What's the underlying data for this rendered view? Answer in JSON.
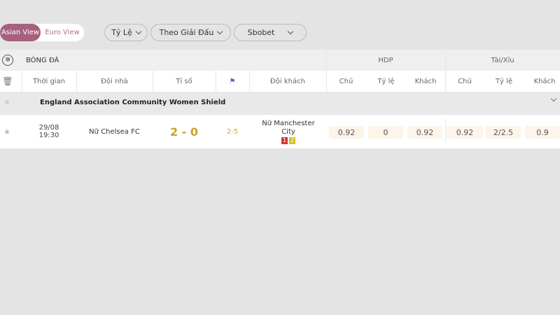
{
  "view_toggle": {
    "asian": "Asian View",
    "euro": "Euro View"
  },
  "filters": [
    {
      "label": "Tỷ Lệ"
    },
    {
      "label": "Theo Giải Đấu"
    },
    {
      "label": "Sbobet"
    }
  ],
  "sport": {
    "label": "BÓNG ĐÁ",
    "hdp": "HDP",
    "tx": "Tài/Xỉu"
  },
  "columns": {
    "time": "Thời gian",
    "home": "Đội nhà",
    "score": "Tỉ số",
    "away": "Đội khách",
    "h_home": "Chủ",
    "h_rate": "Tỷ lệ",
    "h_away": "Khách",
    "t_home": "Chủ",
    "t_rate": "Tỷ lệ",
    "t_away": "Khách"
  },
  "league": {
    "name": "England Association Community Women Shield"
  },
  "match": {
    "date": "29/08",
    "time": "19:30",
    "home": "Nữ Chelsea FC",
    "score": "2 - 0",
    "corners": "2-5",
    "away": "Nữ Manchester City",
    "red_cards": "1",
    "yellow_cards": "2",
    "hdp": [
      "0.92",
      "0",
      "0.92"
    ],
    "tx": [
      "0.92",
      "2/2.5",
      "0.9"
    ]
  },
  "colors": {
    "accent": "#a8607f",
    "score": "#c9a227",
    "odds_bg": "#fdf4ea"
  }
}
